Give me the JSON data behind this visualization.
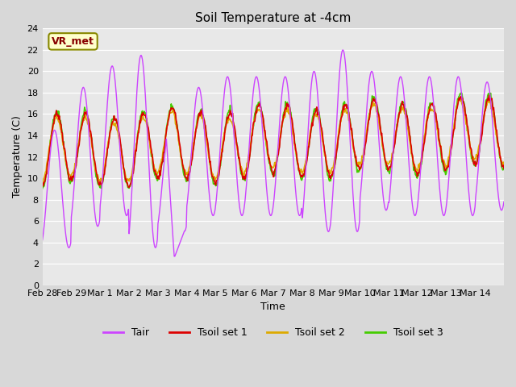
{
  "title": "Soil Temperature at -4cm",
  "xlabel": "Time",
  "ylabel": "Temperature (C)",
  "ylim": [
    0,
    24
  ],
  "fig_facecolor": "#d8d8d8",
  "ax_facecolor": "#e8e8e8",
  "line_colors": {
    "Tair": "#cc44ff",
    "Tsoil set 1": "#dd0000",
    "Tsoil set 2": "#ddaa00",
    "Tsoil set 3": "#44cc00"
  },
  "legend_labels": [
    "Tair",
    "Tsoil set 1",
    "Tsoil set 2",
    "Tsoil set 3"
  ],
  "watermark_text": "VR_met",
  "xtick_labels": [
    "Feb 28",
    "Feb 29",
    "Mar 1",
    "Mar 2",
    "Mar 3",
    "Mar 4",
    "Mar 5",
    "Mar 6",
    "Mar 7",
    "Mar 8",
    "Mar 9",
    "Mar 10",
    "Mar 11",
    "Mar 12",
    "Mar 13",
    "Mar 14"
  ],
  "num_days": 16,
  "points_per_day": 48
}
